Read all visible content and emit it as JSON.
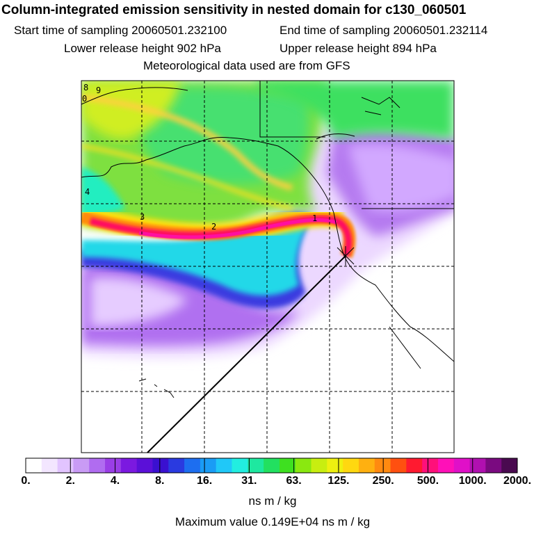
{
  "header": {
    "title": "Column-integrated emission sensitivity in nested domain for c130_060501",
    "start_time": "Start time of sampling 20060501.232100",
    "end_time": "End time of sampling 20060501.232114",
    "lower_release": "Lower release height  902 hPa",
    "upper_release": "Upper release height  894 hPa",
    "met_data": "Meteorological data used are from GFS"
  },
  "map": {
    "contour_labels": [
      "8",
      "9",
      "4",
      "3",
      "2",
      "1"
    ],
    "release_marker": "release-point"
  },
  "colorbar": {
    "tick_labels": [
      "0.",
      "2.",
      "4.",
      "8.",
      "16.",
      "31.",
      "63.",
      "125.",
      "250.",
      "500.",
      "1000.",
      "2000."
    ],
    "colors": [
      "#ffffff",
      "#f3e6ff",
      "#e2c4ff",
      "#c99bf5",
      "#b06cf0",
      "#9a3ee6",
      "#7b19e0",
      "#5b10d8",
      "#3a10d0",
      "#2a3ae0",
      "#1d6ef0",
      "#1a9cf5",
      "#20c8f8",
      "#22eee0",
      "#1ee8a0",
      "#22e060",
      "#3ee020",
      "#8ae810",
      "#c8ee10",
      "#eef010",
      "#ffd810",
      "#ffb010",
      "#ff8a10",
      "#ff5010",
      "#ff1a30",
      "#ff107a",
      "#ff10b8",
      "#e010c8",
      "#b010b0",
      "#7a0a80",
      "#4a0a50"
    ],
    "units": "ns m / kg"
  },
  "footer": {
    "max_value": "Maximum value  0.149E+04 ns m / kg"
  }
}
